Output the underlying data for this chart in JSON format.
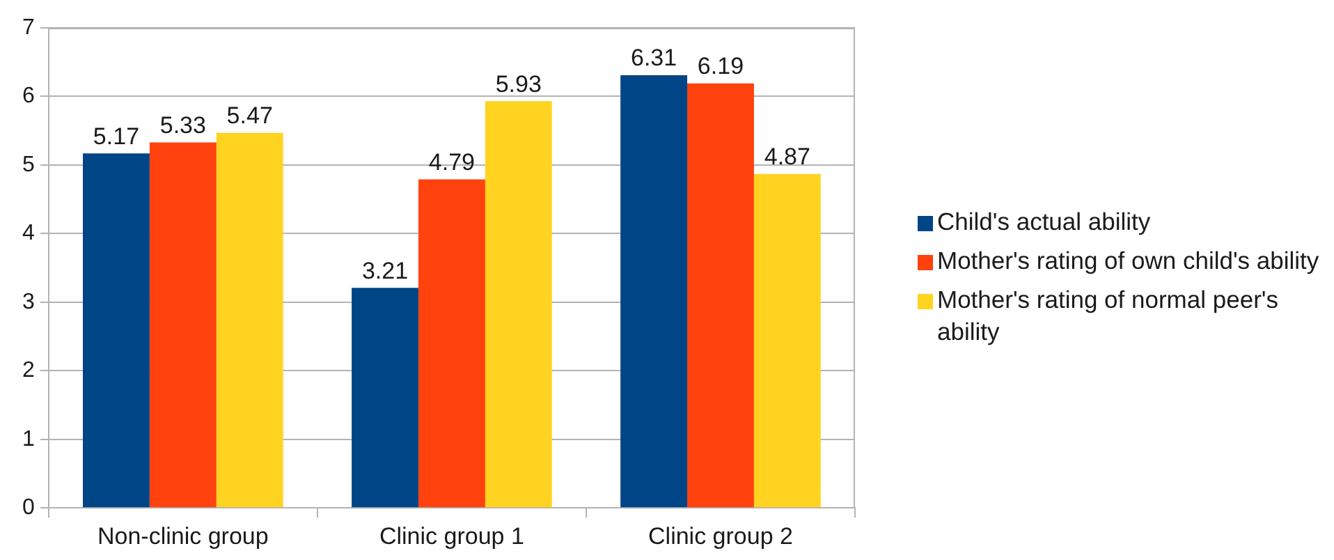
{
  "chart_data": {
    "type": "bar",
    "categories": [
      "Non-clinic group",
      "Clinic group 1",
      "Clinic group 2"
    ],
    "series": [
      {
        "name": "Child's actual ability",
        "color": "#004586",
        "values": [
          5.17,
          3.21,
          6.31
        ]
      },
      {
        "name": "Mother's rating of own child's ability",
        "color": "#ff420e",
        "values": [
          5.33,
          4.79,
          6.19
        ]
      },
      {
        "name": "Mother's rating of normal peer's ability",
        "color": "#ffd320",
        "values": [
          5.47,
          5.93,
          4.87
        ]
      }
    ],
    "ylim": [
      0,
      7
    ],
    "yticks": [
      0,
      1,
      2,
      3,
      4,
      5,
      6,
      7
    ],
    "grid": "y",
    "legend": "right",
    "data_labels": true
  }
}
